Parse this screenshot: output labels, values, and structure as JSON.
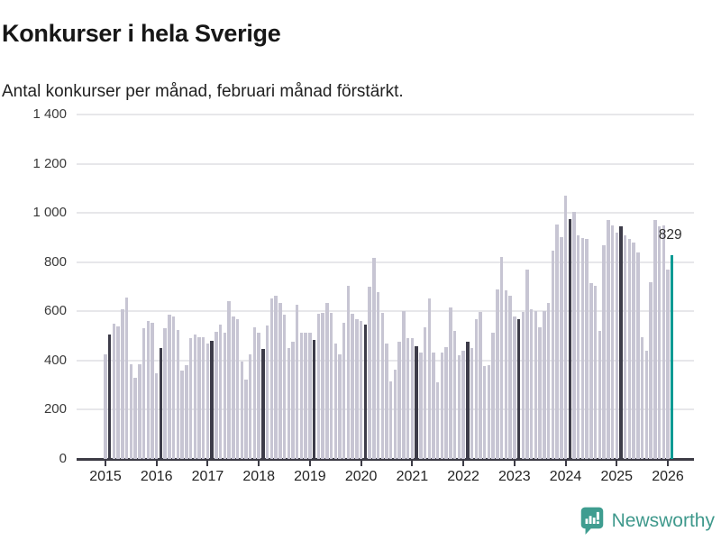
{
  "header": {
    "title": "Konkurser i hela Sverige",
    "subtitle": "Antal konkurser per månad, februari månad förstärkt."
  },
  "chart_data": {
    "type": "bar",
    "title": "Konkurser i hela Sverige",
    "subtitle": "Antal konkurser per månad, februari månad förstärkt.",
    "xlabel": "",
    "ylabel": "",
    "ylim": [
      0,
      1400
    ],
    "grid": "horizontal",
    "legend": "none",
    "y_ticks": [
      0,
      200,
      400,
      600,
      800,
      1000,
      1200,
      1400
    ],
    "y_tick_labels": [
      "0",
      "200",
      "400",
      "600",
      "800",
      "1 000",
      "1 200",
      "1 400"
    ],
    "x_tick_labels": [
      "2015",
      "2016",
      "2017",
      "2018",
      "2019",
      "2020",
      "2021",
      "2022",
      "2023",
      "2024",
      "2025",
      "2026"
    ],
    "start": {
      "year": 2015,
      "month": 1
    },
    "highlight": {
      "rule": "february bars are dark",
      "latest_bar": "teal accent"
    },
    "annotation": {
      "text": "829",
      "applies_to": "2026-02"
    },
    "series": [
      {
        "year": 2015,
        "values": [
          425,
          505,
          550,
          540,
          610,
          655,
          385,
          330,
          385,
          530,
          560,
          555
        ]
      },
      {
        "year": 2016,
        "values": [
          350,
          450,
          530,
          585,
          580,
          525,
          360,
          380,
          490,
          505,
          495,
          494
        ]
      },
      {
        "year": 2017,
        "values": [
          469,
          480,
          517,
          548,
          514,
          640,
          579,
          569,
          395,
          321,
          426,
          536
        ]
      },
      {
        "year": 2018,
        "values": [
          512,
          448,
          542,
          652,
          662,
          634,
          585,
          450,
          475,
          628,
          512,
          512
        ]
      },
      {
        "year": 2019,
        "values": [
          512,
          483,
          589,
          594,
          634,
          594,
          469,
          426,
          554,
          704,
          589,
          567
        ]
      },
      {
        "year": 2020,
        "values": [
          560,
          545,
          699,
          818,
          680,
          594,
          469,
          315,
          364,
          478,
          601,
          491
        ]
      },
      {
        "year": 2021,
        "values": [
          493,
          459,
          432,
          536,
          652,
          434,
          312,
          434,
          454,
          616,
          520,
          420
        ]
      },
      {
        "year": 2022,
        "values": [
          440,
          475,
          450,
          567,
          597,
          377,
          383,
          512,
          690,
          820,
          685,
          665
        ]
      },
      {
        "year": 2023,
        "values": [
          579,
          567,
          597,
          769,
          609,
          603,
          536,
          600,
          634,
          848,
          953,
          903
        ]
      },
      {
        "year": 2024,
        "values": [
          1070,
          975,
          1005,
          910,
          897,
          895,
          715,
          705,
          520,
          870,
          970,
          950
        ]
      },
      {
        "year": 2025,
        "values": [
          920,
          945,
          910,
          895,
          880,
          840,
          495,
          440,
          720,
          970,
          945,
          950
        ]
      },
      {
        "year": 2026,
        "values": [
          770,
          829
        ]
      }
    ],
    "colors": {
      "bar": "#c7c5d3",
      "february_bar": "#3d3c49",
      "accent_bar": "#0a9a94",
      "gridline": "#e7e7ea",
      "axis_line": "#3c3b45"
    }
  },
  "footer": {
    "brand": "Newsworthy",
    "brand_color": "#3f998c",
    "icon": "speech-bubble-with-bar-chart-and-exclamation"
  }
}
